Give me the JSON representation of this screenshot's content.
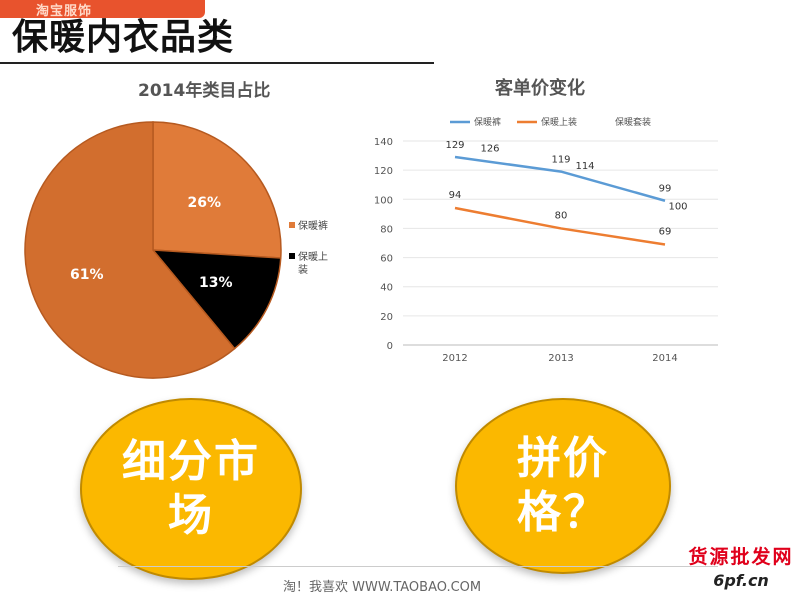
{
  "header": {
    "brand": "淘宝服饰",
    "title": "保暖内衣品类"
  },
  "chart_data": [
    {
      "type": "pie",
      "title": "2014年类目占比",
      "labels": [
        "保暖裤",
        "保暖上装",
        ""
      ],
      "values": [
        26,
        13,
        61
      ],
      "value_labels": [
        "26%",
        "13%",
        "61%"
      ],
      "colors": [
        "#e07b39",
        "#000000",
        "#d26e2e"
      ],
      "legend": {
        "placement": "right",
        "entries": [
          {
            "label": "保暖裤",
            "color": "#e07b39"
          },
          {
            "label": "保暖上装",
            "color": "#000000"
          }
        ]
      }
    },
    {
      "type": "line",
      "title": "客单价变化",
      "categories": [
        "2012",
        "2013",
        "2014"
      ],
      "series": [
        {
          "name": "保暖裤",
          "color": "#5b9bd5",
          "values": [
            129,
            119,
            99
          ]
        },
        {
          "name": "保暖上装",
          "color": "#ed7d31",
          "values": [
            94,
            80,
            69
          ]
        },
        {
          "name": "保暖套装",
          "color": "#a5a5a5",
          "values": [
            126,
            114,
            100
          ]
        }
      ],
      "ylim": [
        0,
        140
      ],
      "yticks": [
        0,
        20,
        40,
        60,
        80,
        100,
        120,
        140
      ],
      "grid": true,
      "legend": {
        "placement": "top"
      }
    }
  ],
  "bubbles": {
    "left": "细分市场",
    "right": "拼价格？"
  },
  "footer": {
    "text": "淘！我喜欢   WWW.TAOBAO.COM"
  },
  "watermark": {
    "text": "货源批发网",
    "url": "6pf.cn"
  }
}
